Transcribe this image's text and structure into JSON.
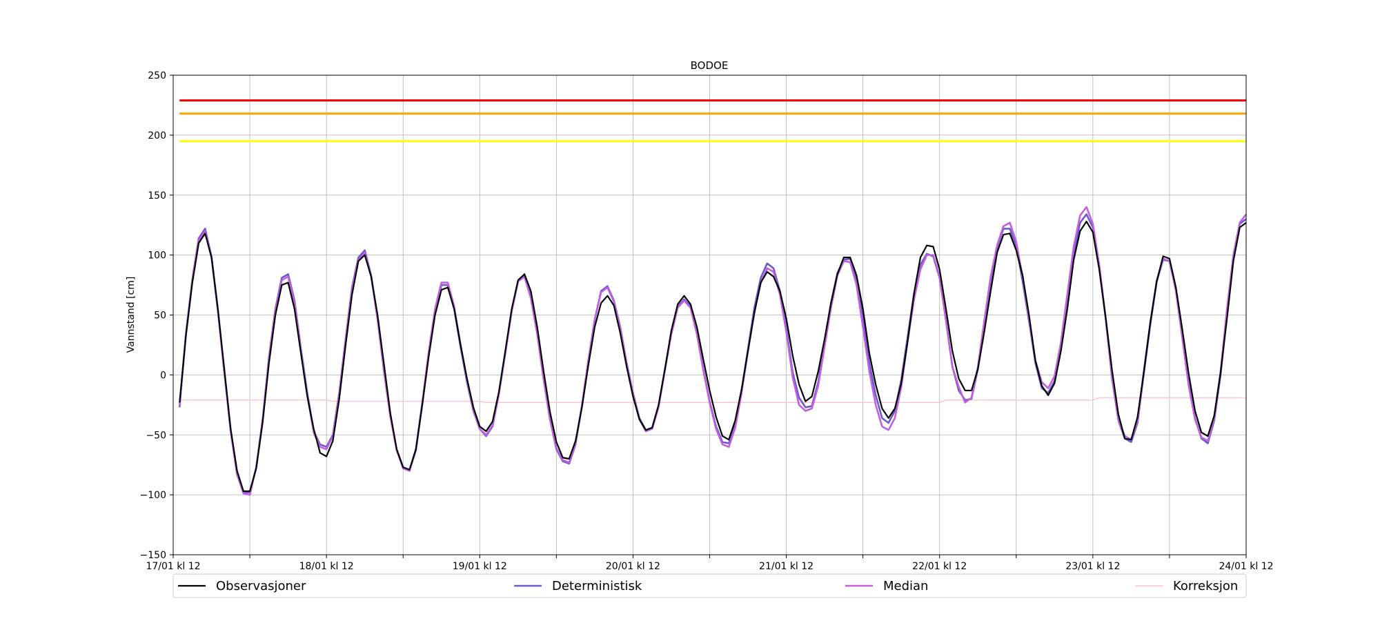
{
  "chart_data": {
    "type": "line",
    "title": "BODOE",
    "xlabel": "",
    "ylabel": "Vannstand [cm]",
    "xlim": [
      0,
      168
    ],
    "ylim": [
      -150,
      250
    ],
    "grid": true,
    "legend_position": "bottom",
    "x_ticks": [
      {
        "hour": 0,
        "label": "17/01 kl 12"
      },
      {
        "hour": 12,
        "label": ""
      },
      {
        "hour": 24,
        "label": "18/01 kl 12"
      },
      {
        "hour": 36,
        "label": ""
      },
      {
        "hour": 48,
        "label": "19/01 kl 12"
      },
      {
        "hour": 60,
        "label": ""
      },
      {
        "hour": 72,
        "label": "20/01 kl 12"
      },
      {
        "hour": 84,
        "label": ""
      },
      {
        "hour": 96,
        "label": "21/01 kl 12"
      },
      {
        "hour": 108,
        "label": ""
      },
      {
        "hour": 120,
        "label": "22/01 kl 12"
      },
      {
        "hour": 132,
        "label": ""
      },
      {
        "hour": 144,
        "label": "23/01 kl 12"
      },
      {
        "hour": 156,
        "label": ""
      },
      {
        "hour": 168,
        "label": "24/01 kl 12"
      }
    ],
    "y_ticks": [
      -150,
      -100,
      -50,
      0,
      50,
      100,
      150,
      200,
      250
    ],
    "thresholds": [
      {
        "value": 229,
        "color": "#ff0000"
      },
      {
        "value": 218,
        "color": "#ffa500"
      },
      {
        "value": 195,
        "color": "#ffff00"
      }
    ],
    "x_hours": [
      1,
      2,
      3,
      4,
      5,
      6,
      7,
      8,
      9,
      10,
      11,
      12,
      13,
      14,
      15,
      16,
      17,
      18,
      19,
      20,
      21,
      22,
      23,
      24,
      25,
      26,
      27,
      28,
      29,
      30,
      31,
      32,
      33,
      34,
      35,
      36,
      37,
      38,
      39,
      40,
      41,
      42,
      43,
      44,
      45,
      46,
      47,
      48,
      49,
      50,
      51,
      52,
      53,
      54,
      55,
      56,
      57,
      58,
      59,
      60,
      61,
      62,
      63,
      64,
      65,
      66,
      67,
      68,
      69,
      70,
      71,
      72,
      73,
      74,
      75,
      76,
      77,
      78,
      79,
      80,
      81,
      82,
      83,
      84,
      85,
      86,
      87,
      88,
      89,
      90,
      91,
      92,
      93,
      94,
      95,
      96,
      97,
      98,
      99,
      100,
      101,
      102,
      103,
      104,
      105,
      106,
      107,
      108,
      109,
      110,
      111,
      112,
      113,
      114,
      115,
      116,
      117,
      118,
      119,
      120,
      121,
      122,
      123,
      124,
      125,
      126,
      127,
      128,
      129,
      130,
      131,
      132,
      133,
      134,
      135,
      136,
      137,
      138,
      139,
      140,
      141,
      142,
      143,
      144,
      145,
      146,
      147,
      148,
      149,
      150,
      151,
      152,
      153,
      154,
      155,
      156,
      157,
      158,
      159,
      160,
      161,
      162,
      163,
      164,
      165,
      166,
      167,
      168
    ],
    "series": [
      {
        "name": "Observasjoner",
        "color": "#000000",
        "width": 2.2,
        "values": [
          -23,
          33,
          77,
          110,
          118,
          98,
          55,
          5,
          -45,
          -80,
          -97,
          -97,
          -78,
          -40,
          10,
          50,
          75,
          77,
          55,
          18,
          -18,
          -45,
          -65,
          -68,
          -55,
          -20,
          25,
          67,
          95,
          100,
          82,
          50,
          9,
          -32,
          -62,
          -77,
          -79,
          -62,
          -25,
          15,
          50,
          71,
          73,
          55,
          25,
          -3,
          -27,
          -43,
          -47,
          -39,
          -14,
          20,
          55,
          79,
          84,
          70,
          40,
          3,
          -31,
          -56,
          -69,
          -70,
          -55,
          -27,
          8,
          40,
          60,
          66,
          58,
          35,
          7,
          -18,
          -37,
          -46,
          -44,
          -25,
          5,
          37,
          59,
          66,
          59,
          40,
          13,
          -13,
          -35,
          -51,
          -54,
          -38,
          -12,
          20,
          52,
          77,
          86,
          82,
          70,
          47,
          16,
          -8,
          -22,
          -18,
          3,
          30,
          60,
          84,
          98,
          98,
          83,
          55,
          18,
          -8,
          -28,
          -36,
          -28,
          -7,
          28,
          68,
          98,
          108,
          107,
          88,
          55,
          20,
          -3,
          -13,
          -13,
          5,
          36,
          70,
          102,
          117,
          118,
          104,
          83,
          50,
          12,
          -9,
          -17,
          -7,
          20,
          55,
          96,
          120,
          128,
          119,
          88,
          48,
          4,
          -33,
          -53,
          -54,
          -35,
          3,
          44,
          78,
          99,
          97,
          73,
          38,
          1,
          -30,
          -48,
          -51,
          -34,
          2,
          47,
          95,
          123,
          127
        ]
      },
      {
        "name": "Deterministisk",
        "color": "#6a5acd",
        "width": 2.6,
        "values": [
          -27,
          35,
          80,
          114,
          122,
          99,
          54,
          3,
          -47,
          -83,
          -98,
          -98,
          -77,
          -37,
          15,
          55,
          81,
          84,
          62,
          22,
          -15,
          -47,
          -58,
          -60,
          -50,
          -15,
          30,
          73,
          98,
          104,
          83,
          47,
          4,
          -34,
          -63,
          -77,
          -80,
          -63,
          -24,
          18,
          53,
          75,
          75,
          55,
          23,
          -6,
          -30,
          -45,
          -51,
          -43,
          -16,
          18,
          53,
          78,
          84,
          66,
          35,
          -3,
          -37,
          -62,
          -72,
          -74,
          -58,
          -26,
          12,
          46,
          70,
          74,
          62,
          40,
          10,
          -15,
          -36,
          -46,
          -44,
          -26,
          5,
          35,
          57,
          63,
          57,
          35,
          5,
          -22,
          -43,
          -56,
          -57,
          -42,
          -13,
          22,
          56,
          81,
          93,
          89,
          70,
          39,
          2,
          -19,
          -27,
          -26,
          -6,
          28,
          60,
          85,
          96,
          97,
          80,
          48,
          10,
          -17,
          -36,
          -40,
          -30,
          -4,
          32,
          68,
          92,
          101,
          99,
          81,
          46,
          7,
          -13,
          -21,
          -20,
          5,
          42,
          79,
          106,
          122,
          122,
          108,
          78,
          45,
          10,
          -11,
          -15,
          -5,
          22,
          60,
          100,
          127,
          134,
          123,
          90,
          47,
          -3,
          -38,
          -53,
          -56,
          -40,
          2,
          42,
          78,
          96,
          95,
          71,
          33,
          -7,
          -36,
          -53,
          -57,
          -38,
          0,
          52,
          98,
          126,
          130
        ]
      },
      {
        "name": "Median",
        "color": "#c25ee0",
        "width": 2.6,
        "values": [
          -26,
          34,
          79,
          112,
          120,
          98,
          53,
          2,
          -47,
          -83,
          -99,
          -100,
          -77,
          -38,
          13,
          53,
          79,
          82,
          60,
          20,
          -17,
          -48,
          -60,
          -62,
          -51,
          -17,
          28,
          71,
          96,
          102,
          82,
          46,
          3,
          -35,
          -63,
          -78,
          -80,
          -62,
          -23,
          19,
          55,
          77,
          77,
          57,
          25,
          -4,
          -29,
          -45,
          -50,
          -42,
          -16,
          18,
          53,
          78,
          82,
          64,
          34,
          -4,
          -37,
          -61,
          -71,
          -73,
          -57,
          -25,
          12,
          46,
          69,
          73,
          61,
          39,
          9,
          -16,
          -37,
          -47,
          -45,
          -27,
          4,
          34,
          56,
          62,
          56,
          34,
          4,
          -23,
          -45,
          -58,
          -60,
          -44,
          -15,
          20,
          52,
          77,
          89,
          86,
          67,
          36,
          -2,
          -25,
          -30,
          -28,
          -9,
          24,
          56,
          83,
          95,
          94,
          75,
          40,
          3,
          -25,
          -43,
          -46,
          -36,
          -10,
          28,
          63,
          88,
          100,
          100,
          82,
          45,
          7,
          -10,
          -23,
          -19,
          7,
          45,
          82,
          108,
          124,
          127,
          111,
          82,
          47,
          12,
          -6,
          -11,
          -1,
          27,
          67,
          107,
          133,
          140,
          126,
          92,
          48,
          -2,
          -37,
          -51,
          -54,
          -38,
          4,
          44,
          79,
          97,
          95,
          70,
          31,
          -9,
          -37,
          -52,
          -55,
          -36,
          3,
          55,
          100,
          127,
          134
        ]
      },
      {
        "name": "Korreksjon",
        "color": "#ffc0cb",
        "width": 1.4,
        "values": [
          -21,
          -21,
          -21,
          -21,
          -21,
          -21,
          -21,
          -21,
          -21,
          -21,
          -21,
          -21,
          -21,
          -21,
          -21,
          -21,
          -21,
          -21,
          -21,
          -21,
          -21,
          -21,
          -21,
          -21,
          -22,
          -22,
          -22,
          -22,
          -22,
          -22,
          -22,
          -22,
          -22,
          -22,
          -22,
          -22,
          -22,
          -22,
          -22,
          -22,
          -22,
          -22,
          -22,
          -22,
          -22,
          -22,
          -22,
          -22,
          -23,
          -23,
          -23,
          -23,
          -23,
          -23,
          -23,
          -23,
          -23,
          -23,
          -23,
          -23,
          -23,
          -23,
          -23,
          -23,
          -23,
          -23,
          -23,
          -23,
          -23,
          -23,
          -23,
          -23,
          -23,
          -23,
          -23,
          -23,
          -23,
          -23,
          -23,
          -23,
          -23,
          -23,
          -23,
          -23,
          -23,
          -23,
          -23,
          -23,
          -23,
          -23,
          -23,
          -23,
          -23,
          -23,
          -23,
          -23,
          -23,
          -23,
          -23,
          -23,
          -23,
          -23,
          -23,
          -23,
          -23,
          -23,
          -23,
          -23,
          -23,
          -23,
          -23,
          -23,
          -23,
          -23,
          -23,
          -23,
          -23,
          -23,
          -23,
          -23,
          -21,
          -21,
          -21,
          -21,
          -21,
          -21,
          -21,
          -21,
          -21,
          -21,
          -21,
          -21,
          -21,
          -21,
          -21,
          -21,
          -21,
          -21,
          -21,
          -21,
          -21,
          -21,
          -21,
          -21,
          -19,
          -19,
          -19,
          -19,
          -19,
          -19,
          -19,
          -19,
          -19,
          -19,
          -19,
          -19,
          -19,
          -19,
          -19,
          -19,
          -19,
          -19,
          -19,
          -19,
          -19,
          -19,
          -19,
          -19
        ]
      }
    ]
  }
}
